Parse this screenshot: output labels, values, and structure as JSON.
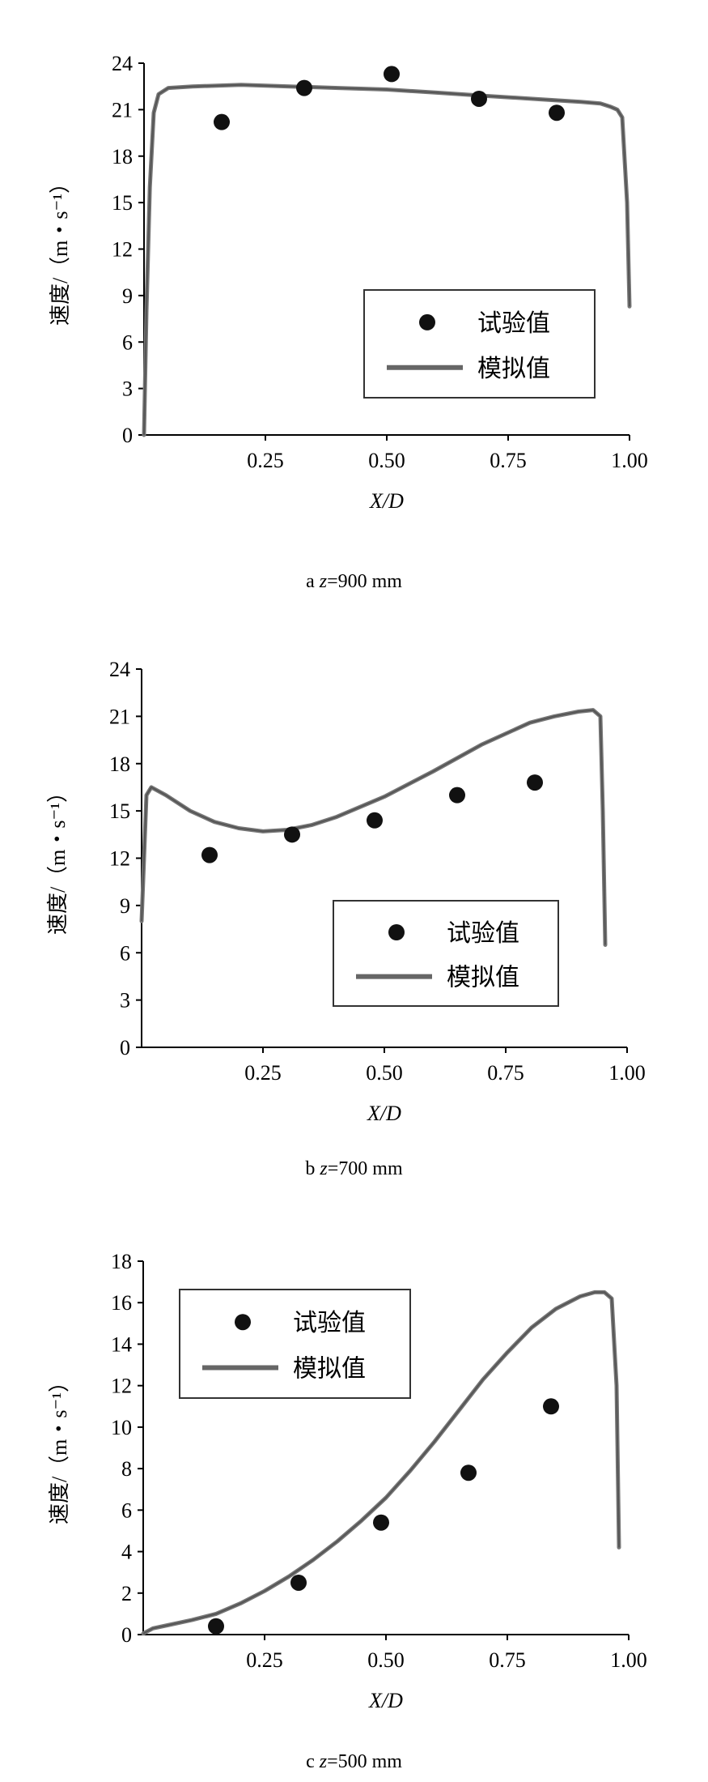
{
  "chart_data": [
    {
      "type": "line",
      "caption_prefix": "a ",
      "caption_var": "z",
      "caption_value": "=900 mm",
      "xlabel": "X/D",
      "ylabel": "速度/（m・s⁻¹）",
      "xlim": [
        0,
        1.0
      ],
      "ylim": [
        0,
        24
      ],
      "xticks": [
        "0.25",
        "0.50",
        "0.75",
        "1.00"
      ],
      "yticks": [
        "0",
        "3",
        "6",
        "9",
        "12",
        "15",
        "18",
        "21",
        "24"
      ],
      "legend_position": "bottom-right",
      "series": [
        {
          "name": "试验值",
          "kind": "scatter",
          "x": [
            0.16,
            0.33,
            0.51,
            0.69,
            0.85
          ],
          "y": [
            20.2,
            22.4,
            23.3,
            21.7,
            20.8
          ]
        },
        {
          "name": "模拟值",
          "kind": "line",
          "x": [
            0.0,
            0.005,
            0.012,
            0.02,
            0.03,
            0.05,
            0.1,
            0.2,
            0.3,
            0.4,
            0.5,
            0.6,
            0.7,
            0.8,
            0.9,
            0.94,
            0.96,
            0.975,
            0.985,
            0.995,
            1.0
          ],
          "y": [
            0,
            8,
            16,
            20.8,
            22.0,
            22.4,
            22.5,
            22.6,
            22.5,
            22.4,
            22.3,
            22.1,
            21.9,
            21.7,
            21.5,
            21.4,
            21.2,
            21.0,
            20.5,
            15.0,
            8.3
          ]
        }
      ]
    },
    {
      "type": "line",
      "caption_prefix": "b ",
      "caption_var": "z",
      "caption_value": "=700 mm",
      "xlabel": "X/D",
      "ylabel": "速度/（m・s⁻¹）",
      "xlim": [
        0,
        1.0
      ],
      "ylim": [
        0,
        24
      ],
      "xticks": [
        "0.25",
        "0.50",
        "0.75",
        "1.00"
      ],
      "yticks": [
        "0",
        "3",
        "6",
        "9",
        "12",
        "15",
        "18",
        "21",
        "24"
      ],
      "legend_position": "bottom-right",
      "series": [
        {
          "name": "试验值",
          "kind": "scatter",
          "x": [
            0.14,
            0.31,
            0.48,
            0.65,
            0.81
          ],
          "y": [
            12.2,
            13.5,
            14.4,
            16.0,
            16.8
          ]
        },
        {
          "name": "模拟值",
          "kind": "line",
          "x": [
            0.0,
            0.005,
            0.01,
            0.02,
            0.05,
            0.1,
            0.15,
            0.2,
            0.25,
            0.3,
            0.35,
            0.4,
            0.5,
            0.6,
            0.7,
            0.8,
            0.85,
            0.9,
            0.93,
            0.945,
            0.95,
            0.955
          ],
          "y": [
            8.0,
            12.0,
            16.0,
            16.5,
            16.0,
            15.0,
            14.3,
            13.9,
            13.7,
            13.8,
            14.1,
            14.6,
            15.9,
            17.5,
            19.2,
            20.6,
            21.0,
            21.3,
            21.4,
            21.0,
            15.0,
            6.5
          ]
        }
      ]
    },
    {
      "type": "line",
      "caption_prefix": "c ",
      "caption_var": "z",
      "caption_value": "=500 mm",
      "xlabel": "X/D",
      "ylabel": "速度/（m・s⁻¹）",
      "xlim": [
        0,
        1.0
      ],
      "ylim": [
        0,
        18
      ],
      "xticks": [
        "0.25",
        "0.50",
        "0.75",
        "1.00"
      ],
      "yticks": [
        "0",
        "2",
        "4",
        "6",
        "8",
        "10",
        "12",
        "14",
        "16",
        "18"
      ],
      "legend_position": "top-left",
      "series": [
        {
          "name": "试验值",
          "kind": "scatter",
          "x": [
            0.15,
            0.32,
            0.49,
            0.67,
            0.84
          ],
          "y": [
            0.4,
            2.5,
            5.4,
            7.8,
            11.0
          ]
        },
        {
          "name": "模拟值",
          "kind": "line",
          "x": [
            0.0,
            0.02,
            0.05,
            0.1,
            0.15,
            0.2,
            0.25,
            0.3,
            0.35,
            0.4,
            0.45,
            0.5,
            0.55,
            0.6,
            0.65,
            0.7,
            0.75,
            0.8,
            0.85,
            0.9,
            0.93,
            0.95,
            0.965,
            0.975,
            0.98
          ],
          "y": [
            0.05,
            0.3,
            0.45,
            0.7,
            1.0,
            1.5,
            2.1,
            2.8,
            3.6,
            4.5,
            5.5,
            6.6,
            7.9,
            9.3,
            10.8,
            12.3,
            13.6,
            14.8,
            15.7,
            16.3,
            16.5,
            16.5,
            16.2,
            12.0,
            4.2
          ]
        }
      ]
    }
  ]
}
